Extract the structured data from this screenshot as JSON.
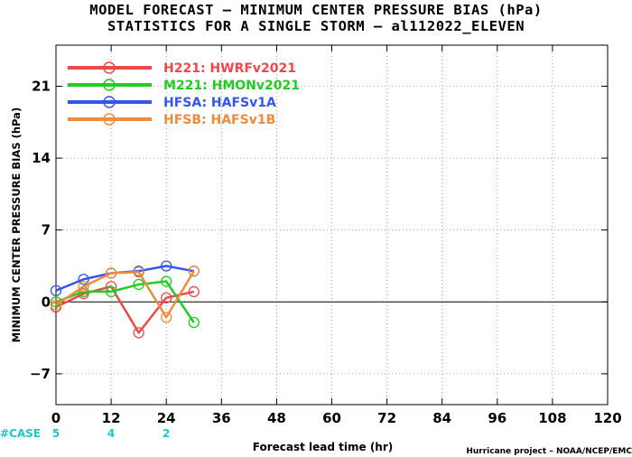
{
  "title_line1": "MODEL FORECAST – MINIMUM CENTER PRESSURE BIAS (hPa)",
  "title_line2": "STATISTICS FOR A SINGLE STORM – al112022_ELEVEN",
  "credit": "Hurricane project – NOAA/NCEP/EMC",
  "case_label": "#CASE",
  "chart_data": {
    "type": "line",
    "title": "MODEL FORECAST – MINIMUM CENTER PRESSURE BIAS (hPa)",
    "subtitle": "STATISTICS FOR A SINGLE STORM – al112022_ELEVEN",
    "xlabel": "Forecast lead time (hr)",
    "ylabel": "MINIMUM CENTER PRESSURE BIAS (hPa)",
    "xlim": [
      0,
      120
    ],
    "ylim": [
      -10,
      25
    ],
    "xticks": [
      0,
      12,
      24,
      36,
      48,
      60,
      72,
      84,
      96,
      108,
      120
    ],
    "yticks": [
      -7,
      0,
      7,
      14,
      21
    ],
    "grid": true,
    "zero_line": true,
    "legend_position": "top-left",
    "series": [
      {
        "name": "H221: HWRFv2021",
        "color": "#f04848",
        "x": [
          0,
          6,
          12,
          18,
          24,
          30
        ],
        "y": [
          -0.5,
          0.8,
          1.5,
          -3.0,
          0.4,
          1.0
        ]
      },
      {
        "name": "M221: HMONv2021",
        "color": "#22cc22",
        "x": [
          0,
          6,
          12,
          18,
          24,
          30
        ],
        "y": [
          0.0,
          1.0,
          1.0,
          1.7,
          2.0,
          -2.0
        ]
      },
      {
        "name": "HFSA: HAFSv1A",
        "color": "#3355ee",
        "x": [
          0,
          6,
          12,
          18,
          24,
          30
        ],
        "y": [
          1.1,
          2.2,
          2.8,
          3.0,
          3.5,
          3.0
        ]
      },
      {
        "name": "HFSB: HAFSv1B",
        "color": "#f08a3c",
        "x": [
          0,
          6,
          12,
          18,
          24,
          30
        ],
        "y": [
          -0.3,
          1.5,
          2.8,
          2.9,
          -1.5,
          3.0
        ]
      }
    ],
    "cases": [
      {
        "x": 0,
        "label": "5"
      },
      {
        "x": 12,
        "label": "4"
      },
      {
        "x": 24,
        "label": "2"
      }
    ]
  }
}
